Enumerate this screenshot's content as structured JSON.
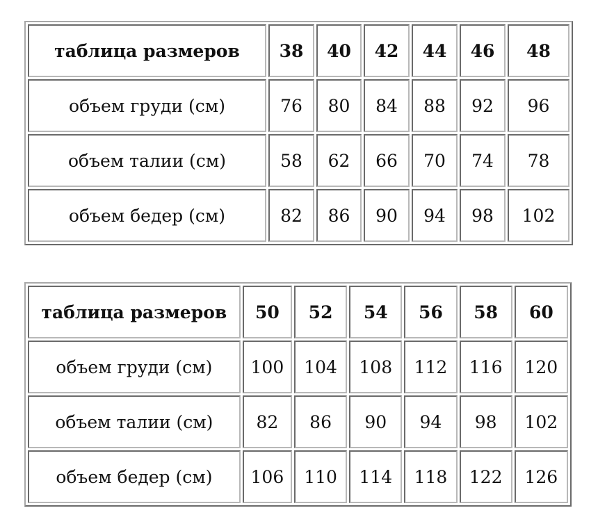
{
  "tables": [
    {
      "header": [
        "таблица размеров",
        "38",
        "40",
        "42",
        "44",
        "46",
        "48"
      ],
      "rows": [
        [
          "объем груди (см)",
          "76",
          "80",
          "84",
          "88",
          "92",
          "96"
        ],
        [
          "объем талии (см)",
          "58",
          "62",
          "66",
          "70",
          "74",
          "78"
        ],
        [
          "объем бедер (см)",
          "82",
          "86",
          "90",
          "94",
          "98",
          "102"
        ]
      ]
    },
    {
      "header": [
        "таблица размеров",
        "50",
        "52",
        "54",
        "56",
        "58",
        "60"
      ],
      "rows": [
        [
          "объем груди (см)",
          "100",
          "104",
          "108",
          "112",
          "116",
          "120"
        ],
        [
          "объем талии (см)",
          "82",
          "86",
          "90",
          "94",
          "98",
          "102"
        ],
        [
          "объем бедер (см)",
          "106",
          "110",
          "114",
          "118",
          "122",
          "126"
        ]
      ]
    }
  ]
}
